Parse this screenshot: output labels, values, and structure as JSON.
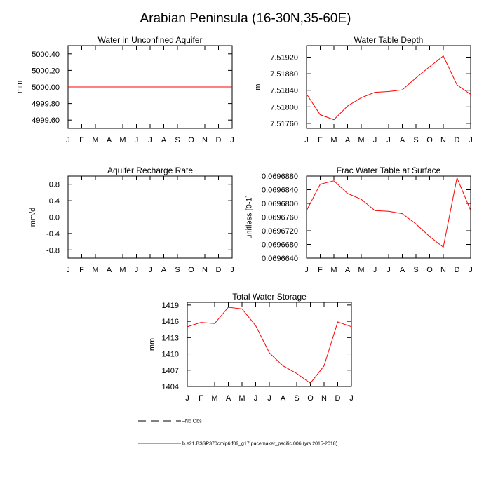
{
  "title": "Arabian Peninsula (16-30N,35-60E)",
  "series_color": "#ff0000",
  "legend": {
    "obs_label": "No Obs",
    "model_label": "b.e21.BSSP370cmip6.f09_g17.pacemaker_pacific.006 (yrs 2015-2018)"
  },
  "chart_data": [
    {
      "type": "line",
      "title": "Water in Unconfined Aquifer",
      "ylabel": "mm",
      "xlabel": "",
      "x_tick_labels": [
        "J",
        "F",
        "M",
        "A",
        "M",
        "J",
        "J",
        "A",
        "S",
        "O",
        "N",
        "D",
        "J"
      ],
      "ylim": [
        4999.5,
        5000.5
      ],
      "y_ticks": [
        4999.6,
        4999.8,
        5000.0,
        5000.2,
        5000.4
      ],
      "y_tick_labels": [
        "4999.60",
        "4999.80",
        "5000.00",
        "5000.20",
        "5000.40"
      ],
      "series": [
        {
          "name": "b.e21.BSSP370cmip6.f09_g17.pacemaker_pacific.006 (yrs 2015-2018)",
          "values": [
            5000,
            5000,
            5000,
            5000,
            5000,
            5000,
            5000,
            5000,
            5000,
            5000,
            5000,
            5000,
            5000
          ]
        }
      ]
    },
    {
      "type": "line",
      "title": "Water Table Depth",
      "ylabel": "m",
      "xlabel": "",
      "x_tick_labels": [
        "J",
        "F",
        "M",
        "A",
        "M",
        "J",
        "J",
        "A",
        "S",
        "O",
        "N",
        "D",
        "J"
      ],
      "ylim": [
        7.51748,
        7.51948
      ],
      "y_ticks": [
        7.5176,
        7.518,
        7.5184,
        7.5188,
        7.5192
      ],
      "y_tick_labels": [
        "7.51760",
        "7.51800",
        "7.51840",
        "7.51880",
        "7.51920"
      ],
      "series": [
        {
          "name": "b.e21.BSSP370cmip6.f09_g17.pacemaker_pacific.006 (yrs 2015-2018)",
          "values": [
            7.51831,
            7.51781,
            7.51769,
            7.51802,
            7.51822,
            7.51835,
            7.51837,
            7.51841,
            7.5187,
            7.51897,
            7.51923,
            7.51853,
            7.5183
          ]
        }
      ]
    },
    {
      "type": "line",
      "title": "Aquifer Recharge Rate",
      "ylabel": "mm/d",
      "xlabel": "",
      "x_tick_labels": [
        "J",
        "F",
        "M",
        "A",
        "M",
        "J",
        "J",
        "A",
        "S",
        "O",
        "N",
        "D",
        "J"
      ],
      "ylim": [
        -1.0,
        1.0
      ],
      "y_ticks": [
        -0.8,
        -0.4,
        0.0,
        0.4,
        0.8
      ],
      "y_tick_labels": [
        "-0.8",
        "-0.4",
        "0.0",
        "0.4",
        "0.8"
      ],
      "series": [
        {
          "name": "b.e21.BSSP370cmip6.f09_g17.pacemaker_pacific.006 (yrs 2015-2018)",
          "values": [
            0,
            0,
            0,
            0,
            0,
            0,
            0,
            0,
            0,
            0,
            0,
            0,
            0
          ]
        }
      ]
    },
    {
      "type": "line",
      "title": "Frac Water Table at Surface",
      "ylabel": "unitless [0-1]",
      "xlabel": "",
      "x_tick_labels": [
        "J",
        "F",
        "M",
        "A",
        "M",
        "J",
        "J",
        "A",
        "S",
        "O",
        "N",
        "D",
        "J"
      ],
      "ylim": [
        0.069664,
        0.069688
      ],
      "y_ticks": [
        0.069664,
        0.069668,
        0.069672,
        0.069676,
        0.06968,
        0.069684,
        0.069688
      ],
      "y_tick_labels": [
        "0.0696640",
        "0.0696680",
        "0.0696720",
        "0.0696760",
        "0.0696800",
        "0.0696840",
        "0.0696880"
      ],
      "series": [
        {
          "name": "b.e21.BSSP370cmip6.f09_g17.pacemaker_pacific.006 (yrs 2015-2018)",
          "values": [
            0.0696779,
            0.0696856,
            0.0696866,
            0.0696829,
            0.0696812,
            0.0696779,
            0.0696777,
            0.069677,
            0.069674,
            0.0696703,
            0.0696672,
            0.0696875,
            0.0696779
          ]
        }
      ]
    },
    {
      "type": "line",
      "title": "Total Water Storage",
      "ylabel": "mm",
      "xlabel": "",
      "x_tick_labels": [
        "J",
        "F",
        "M",
        "A",
        "M",
        "J",
        "J",
        "A",
        "S",
        "O",
        "N",
        "D",
        "J"
      ],
      "ylim": [
        1404,
        1419.5
      ],
      "y_ticks": [
        1404,
        1407,
        1410,
        1413,
        1416,
        1419
      ],
      "y_tick_labels": [
        "1404",
        "1407",
        "1410",
        "1413",
        "1416",
        "1419"
      ],
      "series": [
        {
          "name": "b.e21.BSSP370cmip6.f09_g17.pacemaker_pacific.006 (yrs 2015-2018)",
          "values": [
            1415.0,
            1415.8,
            1415.6,
            1418.6,
            1418.3,
            1415.2,
            1410.2,
            1407.8,
            1406.4,
            1404.6,
            1407.8,
            1415.9,
            1415.0
          ]
        }
      ]
    }
  ]
}
